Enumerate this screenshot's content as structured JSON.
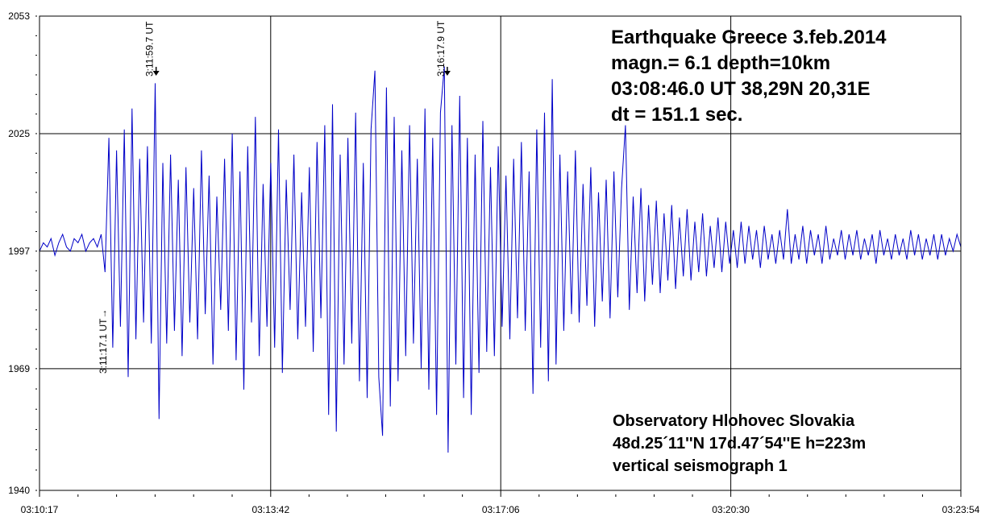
{
  "chart_data": {
    "type": "line",
    "title": "Earthquake Greece  3.feb.2014",
    "xlabel": "",
    "ylabel": "",
    "x_start_time": "03:10:17",
    "xlim_seconds": [
      0,
      817
    ],
    "ylim": [
      1940,
      2053
    ],
    "grid": true,
    "y_ticks": [
      2053,
      2025,
      1997,
      1969,
      1940
    ],
    "y_tick_labels": [
      "2053",
      "2025",
      "1997",
      "1969",
      "1940"
    ],
    "x_ticks_seconds": [
      0,
      205,
      409,
      613,
      817
    ],
    "x_tick_labels": [
      "03:10:17",
      "03:13:42",
      "03:17:06",
      "03:20:30",
      "03:23:54"
    ],
    "series": [
      {
        "name": "vertical seismograph 1",
        "color": "#0000c8",
        "sample_interval_s": 3.418,
        "values": [
          1997,
          1999,
          1998,
          2000,
          1996,
          1999,
          2001,
          1998,
          1997,
          2000,
          1999,
          2001,
          1997,
          1999,
          2000,
          1998,
          2001,
          1992,
          2024,
          1974,
          2021,
          1979,
          2026,
          1967,
          2031,
          1976,
          2019,
          1980,
          2022,
          1975,
          2037,
          1957,
          2018,
          1975,
          2020,
          1978,
          2014,
          1972,
          2017,
          1980,
          2012,
          1976,
          2021,
          1982,
          2015,
          1970,
          2010,
          1983,
          2019,
          1978,
          2025,
          1971,
          2016,
          1964,
          2022,
          1980,
          2029,
          1972,
          2013,
          1979,
          2018,
          1974,
          2026,
          1968,
          2014,
          1983,
          2020,
          1976,
          2011,
          1979,
          2017,
          1973,
          2023,
          1981,
          2027,
          1958,
          2032,
          1954,
          2020,
          1970,
          2024,
          1975,
          2030,
          1966,
          2018,
          1962,
          2026,
          2040,
          1967,
          1953,
          2036,
          1960,
          2029,
          1966,
          2021,
          1972,
          2027,
          1975,
          2019,
          1969,
          2031,
          1964,
          2024,
          1958,
          2030,
          2041,
          1949,
          2027,
          1970,
          2034,
          1962,
          2024,
          1958,
          2020,
          1968,
          2028,
          1973,
          2017,
          1972,
          2022,
          1979,
          2015,
          1976,
          2019,
          1981,
          2023,
          1978,
          2016,
          1963,
          2026,
          1974,
          2030,
          1966,
          2038,
          1970,
          2020,
          1978,
          2016,
          1982,
          2021,
          1980,
          2013,
          1984,
          2017,
          1979,
          2011,
          1985,
          2014,
          1981,
          2016,
          1986,
          2012,
          2027,
          1983,
          2010,
          1987,
          2012,
          1985,
          2008,
          1989,
          2009,
          1987,
          2006,
          1990,
          2008,
          1988,
          2005,
          1991,
          2007,
          1990,
          2004,
          1992,
          2006,
          1991,
          2003,
          1993,
          2005,
          1992,
          2004,
          1994,
          2002,
          1993,
          2004,
          1994,
          2003,
          1995,
          2002,
          1993,
          2003,
          1995,
          2001,
          1994,
          2002,
          1995,
          2007,
          1994,
          2001,
          1995,
          2003,
          1994,
          2002,
          1996,
          2001,
          1994,
          2003,
          1995,
          2000,
          1996,
          2002,
          1995,
          2001,
          1996,
          2002,
          1995,
          2000,
          1996,
          2001,
          1994,
          2002,
          1996,
          2000,
          1995,
          2001,
          1996,
          2000,
          1995,
          2002,
          1996,
          2001,
          1995,
          2000,
          1996,
          2001,
          1995,
          2001,
          1996,
          2000,
          1997,
          2001,
          1998
        ]
      }
    ],
    "annotations": [
      {
        "text": "3:11:59.7 UT",
        "time_s": 102.7,
        "arrow": "down"
      },
      {
        "text": "3:16:17.9 UT",
        "time_s": 360.9,
        "arrow": "down"
      },
      {
        "text": "3:11:17.1 UT→",
        "time_s": 60.1,
        "arrow": "up"
      }
    ]
  },
  "info_top": [
    "Earthquake Greece  3.feb.2014",
    "magn.= 6.1   depth=10km",
    "03:08:46.0 UT   38,29N   20,31E",
    "dt = 151.1 sec."
  ],
  "info_bottom": [
    "Observatory  Hlohovec   Slovakia",
    "48d.25´11''N    17d.47´54''E  h=223m",
    "vertical seismograph 1"
  ]
}
